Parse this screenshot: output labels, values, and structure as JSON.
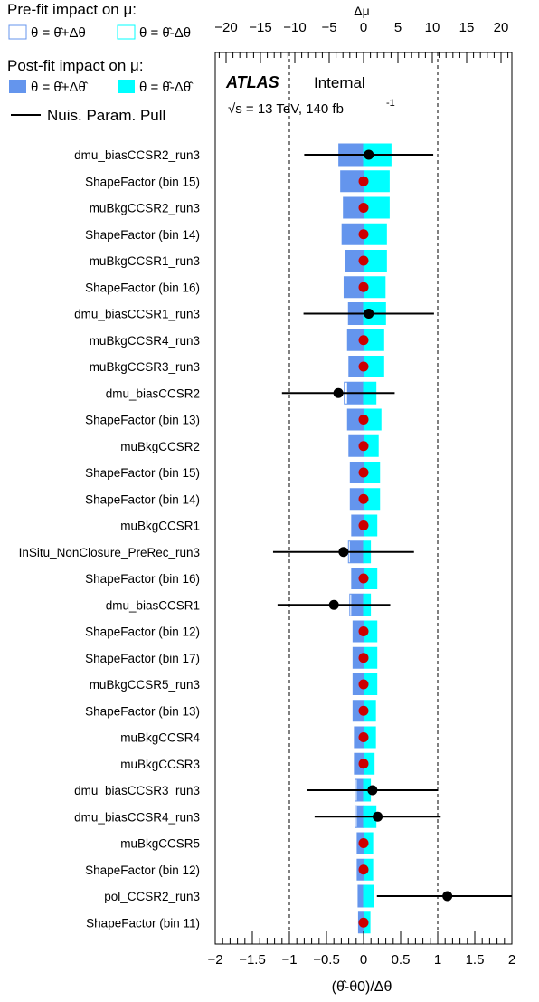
{
  "legend": {
    "prefit_title": "Pre-fit impact on  μ:",
    "prefit_plus": "θ = θ̂+Δθ",
    "prefit_minus": "θ = θ̂-Δθ",
    "postfit_title": "Post-fit impact on  μ:",
    "postfit_plus": "θ = θ̂+Δθ̂",
    "postfit_minus": "θ = θ̂-Δθ̂",
    "pull_label": "Nuis. Param. Pull"
  },
  "atlas": {
    "brand": "ATLAS",
    "status": "Internal",
    "energy": "√s = 13 TeV, 140 fb",
    "energy_sup": "-1"
  },
  "colors": {
    "postfit_plus": "#6495ed",
    "postfit_minus": "#00ffff",
    "prefit_plus_outline": "#6495ed",
    "prefit_minus_outline": "#00ffff",
    "pull_marker": "#000000",
    "nominal_marker": "#cc0000"
  },
  "chart_data": {
    "type": "bar",
    "orientation": "horizontal",
    "xlabel": "(θ̂-θ0)/Δθ",
    "xlim": [
      -2,
      2
    ],
    "xticks": [
      "−2",
      "−1.5",
      "−1",
      "−0.5",
      "0",
      "0.5",
      "1",
      "1.5",
      "2"
    ],
    "top_axis_label": "Δμ",
    "top_xlim": [
      -22,
      22
    ],
    "top_xticks": [
      "−20",
      "−15",
      "−10",
      "−5",
      "0",
      "5",
      "10",
      "15",
      "20"
    ],
    "reference_lines": [
      -1,
      1
    ],
    "parameters": [
      {
        "name": "dmu_biasCCSR2_run3",
        "pull": 0.07,
        "constraint": 0.87,
        "postfit_plus": -3.6,
        "postfit_minus": 4.0,
        "prefit_plus": -3.6,
        "prefit_minus": 4.0,
        "marker": "pull"
      },
      {
        "name": "ShapeFactor (bin 15)",
        "pull": 0.0,
        "constraint": null,
        "postfit_plus": -3.4,
        "postfit_minus": 3.8,
        "marker": "nominal"
      },
      {
        "name": "muBkgCCSR2_run3",
        "pull": 0.0,
        "constraint": null,
        "postfit_plus": -3.0,
        "postfit_minus": 3.8,
        "marker": "nominal"
      },
      {
        "name": "ShapeFactor (bin 14)",
        "pull": 0.0,
        "constraint": null,
        "postfit_plus": -3.2,
        "postfit_minus": 3.4,
        "marker": "nominal"
      },
      {
        "name": "muBkgCCSR1_run3",
        "pull": 0.0,
        "constraint": null,
        "postfit_plus": -2.7,
        "postfit_minus": 3.4,
        "marker": "nominal"
      },
      {
        "name": "ShapeFactor (bin 16)",
        "pull": 0.0,
        "constraint": null,
        "postfit_plus": -2.9,
        "postfit_minus": 3.2,
        "marker": "nominal"
      },
      {
        "name": "dmu_biasCCSR1_run3",
        "pull": 0.07,
        "constraint": 0.88,
        "postfit_plus": -2.2,
        "postfit_minus": 3.2,
        "prefit_plus": -2.2,
        "prefit_minus": 3.2,
        "marker": "pull"
      },
      {
        "name": "muBkgCCSR4_run3",
        "pull": 0.0,
        "constraint": null,
        "postfit_plus": -2.4,
        "postfit_minus": 3.0,
        "marker": "nominal"
      },
      {
        "name": "muBkgCCSR3_run3",
        "pull": 0.0,
        "constraint": null,
        "postfit_plus": -2.2,
        "postfit_minus": 3.0,
        "marker": "nominal"
      },
      {
        "name": "dmu_biasCCSR2",
        "pull": -0.34,
        "constraint": 0.76,
        "postfit_plus": -2.4,
        "postfit_minus": 1.8,
        "prefit_plus": -2.8,
        "prefit_minus": 1.8,
        "marker": "pull"
      },
      {
        "name": "ShapeFactor (bin 13)",
        "pull": 0.0,
        "constraint": null,
        "postfit_plus": -2.4,
        "postfit_minus": 2.6,
        "marker": "nominal"
      },
      {
        "name": "muBkgCCSR2",
        "pull": 0.0,
        "constraint": null,
        "postfit_plus": -2.2,
        "postfit_minus": 2.2,
        "marker": "nominal"
      },
      {
        "name": "ShapeFactor (bin 15)",
        "pull": 0.0,
        "constraint": null,
        "postfit_plus": -2.0,
        "postfit_minus": 2.4,
        "marker": "nominal"
      },
      {
        "name": "ShapeFactor (bin 14)",
        "pull": 0.0,
        "constraint": null,
        "postfit_plus": -2.0,
        "postfit_minus": 2.4,
        "marker": "nominal"
      },
      {
        "name": "muBkgCCSR1",
        "pull": 0.0,
        "constraint": null,
        "postfit_plus": -1.8,
        "postfit_minus": 2.0,
        "marker": "nominal"
      },
      {
        "name": "InSitu_NonClosure_PreRec_run3",
        "pull": -0.27,
        "constraint": 0.95,
        "postfit_plus": -2.0,
        "postfit_minus": 1.0,
        "prefit_plus": -2.2,
        "prefit_minus": 1.0,
        "marker": "pull"
      },
      {
        "name": "ShapeFactor (bin 16)",
        "pull": 0.0,
        "constraint": null,
        "postfit_plus": -1.8,
        "postfit_minus": 2.0,
        "marker": "nominal"
      },
      {
        "name": "dmu_biasCCSR1",
        "pull": -0.4,
        "constraint": 0.76,
        "postfit_plus": -1.8,
        "postfit_minus": 1.0,
        "prefit_plus": -2.0,
        "prefit_minus": 1.0,
        "marker": "pull"
      },
      {
        "name": "ShapeFactor (bin 12)",
        "pull": 0.0,
        "constraint": null,
        "postfit_plus": -1.6,
        "postfit_minus": 2.0,
        "marker": "nominal"
      },
      {
        "name": "ShapeFactor (bin 17)",
        "pull": 0.0,
        "constraint": null,
        "postfit_plus": -1.6,
        "postfit_minus": 2.0,
        "marker": "nominal"
      },
      {
        "name": "muBkgCCSR5_run3",
        "pull": 0.0,
        "constraint": null,
        "postfit_plus": -1.6,
        "postfit_minus": 2.0,
        "marker": "nominal"
      },
      {
        "name": "ShapeFactor (bin 13)",
        "pull": 0.0,
        "constraint": null,
        "postfit_plus": -1.6,
        "postfit_minus": 1.8,
        "marker": "nominal"
      },
      {
        "name": "muBkgCCSR4",
        "pull": 0.0,
        "constraint": null,
        "postfit_plus": -1.4,
        "postfit_minus": 1.8,
        "marker": "nominal"
      },
      {
        "name": "muBkgCCSR3",
        "pull": 0.0,
        "constraint": null,
        "postfit_plus": -1.4,
        "postfit_minus": 1.6,
        "marker": "nominal"
      },
      {
        "name": "dmu_biasCCSR3_run3",
        "pull": 0.12,
        "constraint": 0.88,
        "postfit_plus": -1.0,
        "postfit_minus": 1.0,
        "prefit_plus": -1.2,
        "prefit_minus": 1.0,
        "marker": "pull"
      },
      {
        "name": "dmu_biasCCSR4_run3",
        "pull": 0.19,
        "constraint": 0.85,
        "postfit_plus": -1.0,
        "postfit_minus": 1.8,
        "prefit_plus": -1.2,
        "prefit_minus": 1.8,
        "marker": "pull"
      },
      {
        "name": "muBkgCCSR5",
        "pull": 0.0,
        "constraint": null,
        "postfit_plus": -1.0,
        "postfit_minus": 1.4,
        "marker": "nominal"
      },
      {
        "name": "ShapeFactor (bin 12)",
        "pull": 0.0,
        "constraint": null,
        "postfit_plus": -1.0,
        "postfit_minus": 1.4,
        "marker": "nominal"
      },
      {
        "name": "pol_CCSR2_run3",
        "pull": 1.13,
        "constraint": 0.95,
        "postfit_plus": -0.8,
        "postfit_minus": 1.4,
        "prefit_plus": -0.8,
        "prefit_minus": 1.4,
        "marker": "pull"
      },
      {
        "name": "ShapeFactor (bin 11)",
        "pull": 0.0,
        "constraint": null,
        "postfit_plus": -0.8,
        "postfit_minus": 1.0,
        "marker": "nominal"
      }
    ]
  }
}
